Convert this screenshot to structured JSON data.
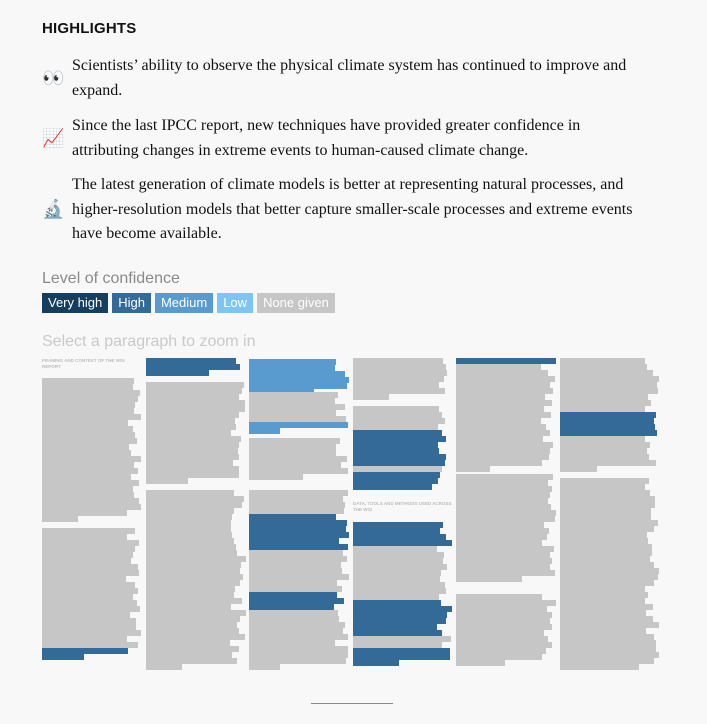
{
  "highlights": {
    "title": "HIGHLIGHTS",
    "items": [
      {
        "icon": "👀",
        "icon_name": "eyes-icon",
        "text": "Scientists’ ability to observe the physical climate system has continued to improve and expand."
      },
      {
        "icon": "📈",
        "icon_name": "chart-increasing-icon",
        "text": "Since the last IPCC report, new techniques have provided greater confidence in attributing changes in extreme events to human-caused climate change."
      },
      {
        "icon": "🔬",
        "icon_name": "microscope-icon",
        "text": "The latest generation of climate models is better at representing natural processes, and higher-resolution models that better capture smaller-scale processes and extreme events have become available."
      }
    ]
  },
  "confidence": {
    "label": "Level of confidence",
    "levels": [
      {
        "key": "very_high",
        "label": "Very high",
        "color": "#143d5e"
      },
      {
        "key": "high",
        "label": "High",
        "color": "#336a98"
      },
      {
        "key": "medium",
        "label": "Medium",
        "color": "#5a9bcf"
      },
      {
        "key": "low",
        "label": "Low",
        "color": "#7ec5f1"
      },
      {
        "key": "none",
        "label": "None given",
        "color": "#c6c6c6"
      }
    ]
  },
  "zoom_hint": "Select a paragraph to zoom in",
  "section_headings": [
    {
      "col": 0,
      "text": "FRAMING AND CONTEXT OF THE WGI REPORT"
    },
    {
      "col": 3,
      "text": "DATA, TOOLS AND METHODS USED ACROSS THE WGI"
    }
  ]
}
